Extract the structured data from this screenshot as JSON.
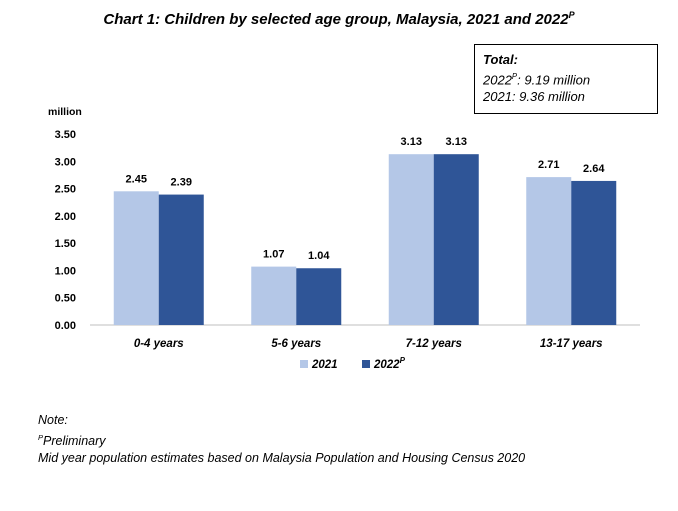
{
  "title": {
    "main": "Chart 1: Children by selected age group, Malaysia, 2021 and 2022",
    "sup": "P"
  },
  "total_box": {
    "heading": "Total:",
    "line1_year": "2022",
    "line1_sup": "P",
    "line1_value": ": 9.19 million",
    "line2": "2021: 9.36 million"
  },
  "chart_data": {
    "type": "bar",
    "ylabel": "million",
    "ylim": [
      0,
      3.5
    ],
    "yticks": [
      "0.00",
      "0.50",
      "1.00",
      "1.50",
      "2.00",
      "2.50",
      "3.00",
      "3.50"
    ],
    "categories": [
      "0-4 years",
      "5-6 years",
      "7-12 years",
      "13-17 years"
    ],
    "series": [
      {
        "name": "2021",
        "sup": "",
        "color": "#b4c7e7",
        "values": [
          2.45,
          1.07,
          3.13,
          2.71
        ],
        "labels": [
          "2.45",
          "1.07",
          "3.13",
          "2.71"
        ]
      },
      {
        "name": "2022",
        "sup": "P",
        "color": "#2f5597",
        "values": [
          2.39,
          1.04,
          3.13,
          2.64
        ],
        "labels": [
          "2.39",
          "1.04",
          "3.13",
          "2.64"
        ]
      }
    ],
    "legend_position": "bottom",
    "grid": false
  },
  "note": {
    "heading": "Note:",
    "prelim_sup": "P",
    "prelim_text": "Preliminary",
    "source": "Mid year population estimates based on Malaysia Population and Housing Census 2020"
  }
}
